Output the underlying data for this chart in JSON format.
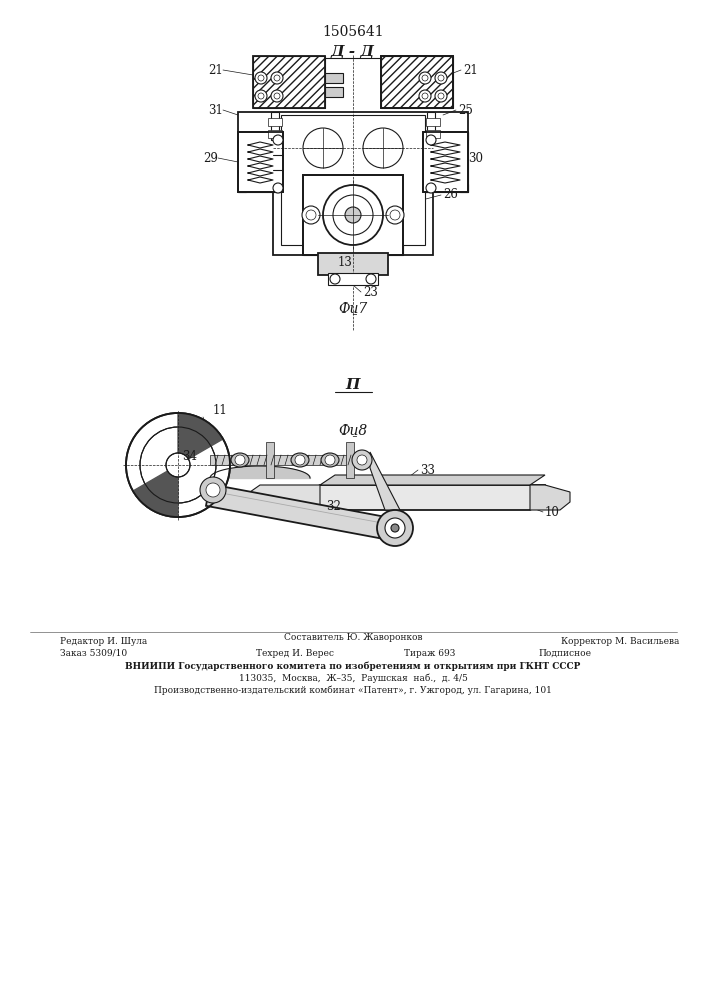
{
  "patent_number": "1505641",
  "fig7_label": "Фи̱7",
  "fig8_label": "Фи̱8",
  "section_label": "Д - Д",
  "section_label2": "Π",
  "background_color": "#ffffff",
  "line_color": "#1a1a1a",
  "footer_line1_left": "Редактор И. Шула",
  "footer_line1_center": "Составитель Ю. Жаворонков",
  "footer_line1_right": "Корректор М. Васильева",
  "footer_line2_left": "Заказ 5309/10",
  "footer_line2_center": "Техред И. Верес",
  "footer_line2_center2": "Тираж 693",
  "footer_line2_right": "Подписное",
  "footer_line3": "ВНИИПИ Государственного комитета по изобретениям и открытиям при ГКНТ СССР",
  "footer_line4": "113035,  Москва,  Ж–35,  Раушская  наб.,  д. 4/5",
  "footer_line5": "Производственно-издательский комбинат «Патент», г. Ужгород, ул. Гагарина, 101"
}
